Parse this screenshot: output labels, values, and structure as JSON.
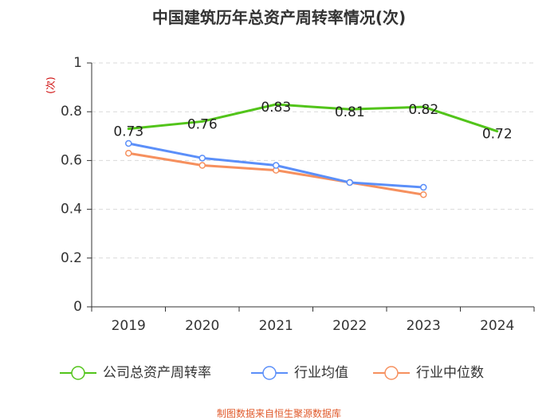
{
  "chart_data": {
    "type": "line",
    "title": "中国建筑历年总资产周转率情况(次)",
    "ylabel": "(次)",
    "xlabel": "",
    "categories": [
      "2019",
      "2020",
      "2021",
      "2022",
      "2023",
      "2024"
    ],
    "ylim": [
      0,
      1
    ],
    "yticks": [
      0,
      0.2,
      0.4,
      0.6,
      0.8,
      1
    ],
    "ytick_labels": [
      "0",
      "0.2",
      "0.4",
      "0.6",
      "0.8",
      "1"
    ],
    "grid": true,
    "legend_position": "bottom",
    "series": [
      {
        "name": "公司总资产周转率",
        "color": "#52c41a",
        "values": [
          0.73,
          0.76,
          0.83,
          0.81,
          0.82,
          0.72
        ],
        "labels": [
          "0.73",
          "0.76",
          "0.83",
          "0.81",
          "0.82",
          "0.72"
        ],
        "show_labels": true
      },
      {
        "name": "行业均值",
        "color": "#5b8ff9",
        "values": [
          0.67,
          0.61,
          0.58,
          0.51,
          0.49,
          null
        ],
        "show_labels": false
      },
      {
        "name": "行业中位数",
        "color": "#f6905e",
        "values": [
          0.63,
          0.58,
          0.56,
          0.51,
          0.46,
          null
        ],
        "show_labels": false
      }
    ]
  },
  "footer": "制图数据来自恒生聚源数据库"
}
